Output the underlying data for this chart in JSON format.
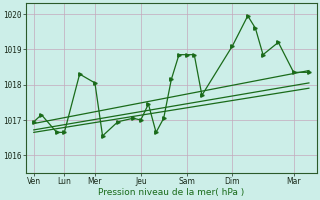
{
  "xlabel": "Pression niveau de la mer( hPa )",
  "bg_color": "#cceee8",
  "grid_color": "#c4a8bc",
  "line_color": "#1a6b1a",
  "ylim": [
    1015.5,
    1020.3
  ],
  "yticks": [
    1016,
    1017,
    1018,
    1019,
    1020
  ],
  "xtick_labels": [
    "Ven",
    "Lun",
    "Mer",
    "Jeu",
    "Sam",
    "Dim",
    "Mar"
  ],
  "xtick_positions": [
    0,
    2,
    4,
    7,
    10,
    13,
    17
  ],
  "xlim": [
    -0.5,
    18.5
  ],
  "pressure_data": [
    [
      0,
      1016.95
    ],
    [
      0.5,
      1017.15
    ],
    [
      1.5,
      1016.65
    ],
    [
      2,
      1016.65
    ],
    [
      3,
      1018.3
    ],
    [
      4,
      1018.05
    ],
    [
      4.5,
      1016.55
    ],
    [
      5.5,
      1016.95
    ],
    [
      6.5,
      1017.05
    ],
    [
      7,
      1017.0
    ],
    [
      7.5,
      1017.45
    ],
    [
      8,
      1016.65
    ],
    [
      8.5,
      1017.05
    ],
    [
      9,
      1018.15
    ],
    [
      9.5,
      1018.85
    ],
    [
      10,
      1018.85
    ],
    [
      10.5,
      1018.85
    ],
    [
      11,
      1017.7
    ],
    [
      13,
      1019.1
    ],
    [
      14,
      1019.95
    ],
    [
      14.5,
      1019.6
    ],
    [
      15,
      1018.85
    ],
    [
      16,
      1019.2
    ],
    [
      17,
      1018.35
    ],
    [
      18,
      1018.35
    ]
  ],
  "trend_line1": [
    [
      0,
      1016.9
    ],
    [
      18,
      1018.4
    ]
  ],
  "trend_line2": [
    [
      0,
      1016.65
    ],
    [
      18,
      1017.9
    ]
  ],
  "trend_line3": [
    [
      0,
      1016.72
    ],
    [
      18,
      1018.05
    ]
  ]
}
